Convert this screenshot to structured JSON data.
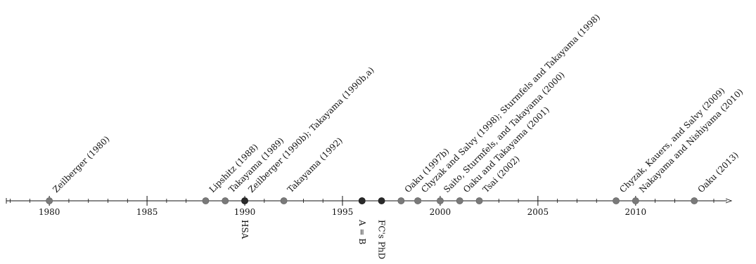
{
  "timeline": {
    "start_year": 1977.8,
    "end_year": 2014.9,
    "major_ticks": [
      "1980",
      "1985",
      "1990",
      "1995",
      "2000",
      "2005",
      "2010"
    ],
    "minor_tick_years": [
      1978,
      1979,
      1980,
      1981,
      1982,
      1983,
      1984,
      1985,
      1986,
      1987,
      1988,
      1989,
      1990,
      1991,
      1992,
      1993,
      1994,
      1995,
      1996,
      1997,
      1998,
      1999,
      2000,
      2001,
      2002,
      2003,
      2004,
      2005,
      2006,
      2007,
      2008,
      2009,
      2010,
      2011,
      2012,
      2013,
      2014
    ],
    "colors": {
      "axis": "#111111",
      "event_dot": "#7a7a7a",
      "milestone_dot": "#2a2a2a"
    },
    "events": [
      {
        "year": 1980,
        "label": "Zeilberger (1980)"
      },
      {
        "year": 1988,
        "label": "Lipshitz (1988)"
      },
      {
        "year": 1989,
        "label": "Takayama (1989)"
      },
      {
        "year": 1990,
        "label": "Zeilberger (1990b); Takayama (1990b,a)"
      },
      {
        "year": 1992,
        "label": "Takayama (1992)"
      },
      {
        "year": 1996,
        "label": ""
      },
      {
        "year": 1998,
        "label": "Oaku (1997b)"
      },
      {
        "year": 1998.85,
        "label": "Chyzak and Salvy (1998); Sturmfels and Takayama (1998)"
      },
      {
        "year": 2000,
        "label": "Saito, Sturmfels, and Takayama (2000)"
      },
      {
        "year": 2001,
        "label": "Oaku and Takayama (2001)"
      },
      {
        "year": 2002,
        "label": "Tsai (2002)"
      },
      {
        "year": 2009,
        "label": "Chyzak, Kauers, and Salvy (2009)"
      },
      {
        "year": 2010,
        "label": "Nakayama and Nishiyama (2010)"
      },
      {
        "year": 2013,
        "label": "Oaku (2013)"
      }
    ],
    "milestones": [
      {
        "year": 1990,
        "label": "HSA"
      },
      {
        "year": 1996,
        "label": "A = B"
      },
      {
        "year": 1997,
        "label": "FC's PhD"
      }
    ]
  }
}
